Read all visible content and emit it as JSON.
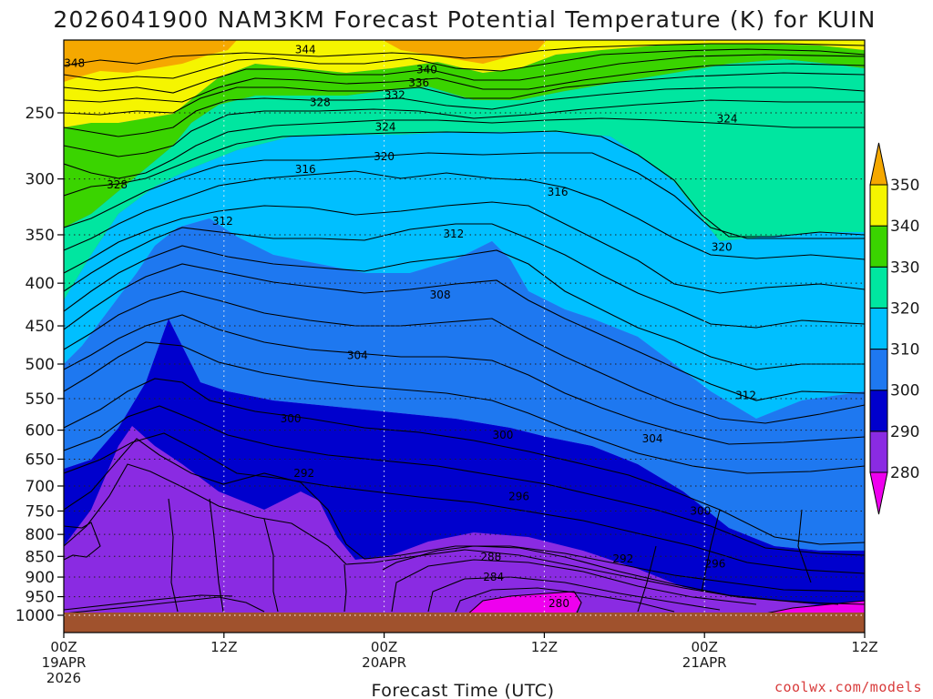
{
  "chart_data": {
    "type": "heatmap",
    "title": "2026041900 NAM3KM Forecast Potential Temperature (K) for KUIN",
    "xlabel": "Forecast Time (UTC)",
    "ylabel": "",
    "credit": "coolwx.com/models",
    "x_ticks": [
      {
        "hour": 0,
        "line1": "00Z",
        "line2": "19APR",
        "line3": "2026"
      },
      {
        "hour": 12,
        "line1": "12Z",
        "line2": "",
        "line3": ""
      },
      {
        "hour": 24,
        "line1": "00Z",
        "line2": "20APR",
        "line3": ""
      },
      {
        "hour": 36,
        "line1": "12Z",
        "line2": "",
        "line3": ""
      },
      {
        "hour": 48,
        "line1": "00Z",
        "line2": "21APR",
        "line3": ""
      },
      {
        "hour": 60,
        "line1": "12Z",
        "line2": "",
        "line3": ""
      }
    ],
    "xlim": [
      0,
      60
    ],
    "y_ticks": [
      250,
      300,
      350,
      400,
      450,
      500,
      550,
      600,
      650,
      700,
      750,
      800,
      850,
      900,
      950,
      1000
    ],
    "ylim": [
      200,
      1050
    ],
    "y_scale": "log-pressure",
    "colorbar": {
      "levels": [
        280,
        290,
        300,
        310,
        320,
        330,
        340,
        350
      ],
      "labels": [
        "280",
        "290",
        "300",
        "310",
        "320",
        "330",
        "340",
        "350"
      ],
      "colors": [
        "#ee00ee",
        "#8a2be2",
        "#0000cd",
        "#1e78f0",
        "#00bfff",
        "#00e6a0",
        "#3ad400",
        "#f5f500",
        "#f5a800"
      ]
    },
    "contour_labels": [
      {
        "value": "348",
        "hour": 0.8,
        "pressure": 218
      },
      {
        "value": "344",
        "hour": 18.1,
        "pressure": 210
      },
      {
        "value": "340",
        "hour": 27.2,
        "pressure": 222
      },
      {
        "value": "336",
        "hour": 26.6,
        "pressure": 230
      },
      {
        "value": "332",
        "hour": 24.8,
        "pressure": 238
      },
      {
        "value": "328",
        "hour": 19.2,
        "pressure": 243
      },
      {
        "value": "328",
        "hour": 4.0,
        "pressure": 305
      },
      {
        "value": "324",
        "hour": 24.1,
        "pressure": 260
      },
      {
        "value": "324",
        "hour": 49.7,
        "pressure": 254
      },
      {
        "value": "320",
        "hour": 24.0,
        "pressure": 282
      },
      {
        "value": "320",
        "hour": 49.3,
        "pressure": 362
      },
      {
        "value": "316",
        "hour": 18.1,
        "pressure": 292
      },
      {
        "value": "316",
        "hour": 37.0,
        "pressure": 311
      },
      {
        "value": "312",
        "hour": 11.9,
        "pressure": 337
      },
      {
        "value": "312",
        "hour": 29.2,
        "pressure": 349
      },
      {
        "value": "312",
        "hour": 51.1,
        "pressure": 545
      },
      {
        "value": "308",
        "hour": 28.2,
        "pressure": 413
      },
      {
        "value": "304",
        "hour": 22.0,
        "pressure": 488
      },
      {
        "value": "304",
        "hour": 44.1,
        "pressure": 614
      },
      {
        "value": "300",
        "hour": 17.0,
        "pressure": 581
      },
      {
        "value": "300",
        "hour": 32.9,
        "pressure": 608
      },
      {
        "value": "300",
        "hour": 47.7,
        "pressure": 750
      },
      {
        "value": "296",
        "hour": 34.1,
        "pressure": 721
      },
      {
        "value": "296",
        "hour": 48.8,
        "pressure": 868
      },
      {
        "value": "292",
        "hour": 18.0,
        "pressure": 676
      },
      {
        "value": "292",
        "hour": 41.9,
        "pressure": 856
      },
      {
        "value": "288",
        "hour": 32.0,
        "pressure": 851
      },
      {
        "value": "284",
        "hour": 32.2,
        "pressure": 900
      },
      {
        "value": "280",
        "hour": 37.1,
        "pressure": 968
      }
    ]
  }
}
